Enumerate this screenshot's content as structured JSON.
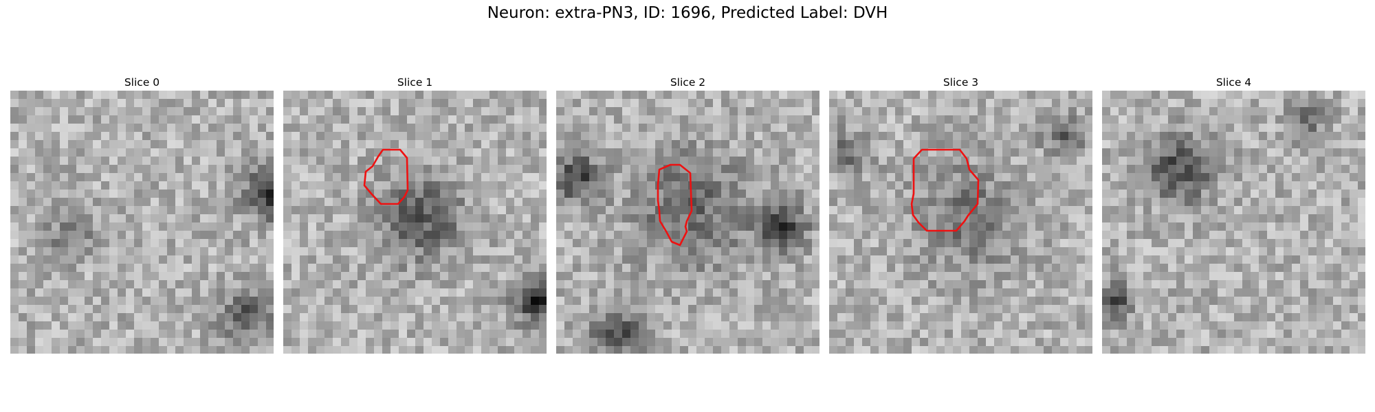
{
  "title": "Neuron: extra-PN3, ID: 1696, Predicted Label: DVH",
  "panels": [
    {
      "label": "Slice 0",
      "has_contour": false,
      "blobs": [
        [
          31,
          12,
          2.2,
          120
        ],
        [
          7,
          17,
          2.0,
          65
        ],
        [
          28,
          27,
          2.2,
          85
        ]
      ]
    },
    {
      "label": "Slice 1",
      "has_contour": true,
      "blobs": [
        [
          16,
          15,
          3.6,
          85
        ],
        [
          30,
          25,
          1.8,
          140
        ]
      ]
    },
    {
      "label": "Slice 2",
      "has_contour": true,
      "blobs": [
        [
          16,
          14,
          5.0,
          70
        ],
        [
          27,
          16,
          2.0,
          110
        ],
        [
          2,
          10,
          2.0,
          110
        ],
        [
          7,
          29,
          2.5,
          90
        ]
      ]
    },
    {
      "label": "Slice 3",
      "has_contour": true,
      "blobs": [
        [
          16,
          15,
          4.5,
          60
        ],
        [
          28,
          5,
          1.8,
          70
        ],
        [
          2,
          7,
          2.0,
          60
        ]
      ]
    },
    {
      "label": "Slice 4",
      "has_contour": false,
      "blobs": [
        [
          9,
          9,
          2.8,
          100
        ],
        [
          1,
          25,
          1.6,
          100
        ],
        [
          24,
          3,
          1.8,
          60
        ]
      ]
    }
  ],
  "contour_color": "#ee1111"
}
